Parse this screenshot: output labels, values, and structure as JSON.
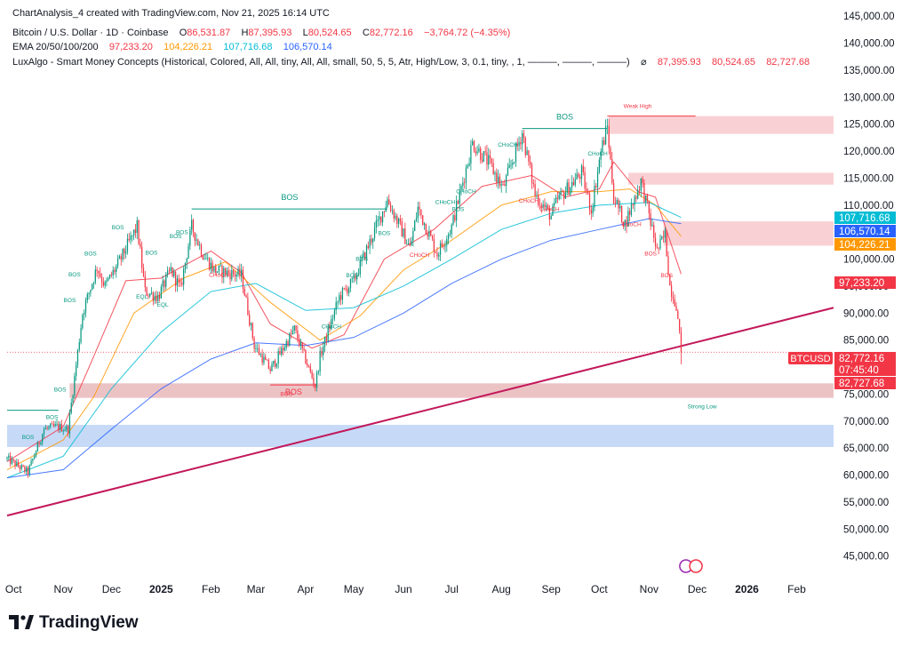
{
  "header": {
    "created": "ChartAnalysis_4 created with TradingView.com, Nov 21, 2025 16:14 UTC",
    "symbol": "Bitcoin / U.S. Dollar · 1D · Coinbase",
    "ohlc": {
      "o_label": "O",
      "o": "86,531.87",
      "h_label": "H",
      "h": "87,395.93",
      "l_label": "L",
      "l": "80,524.65",
      "c_label": "C",
      "c": "82,772.16",
      "change": "−3,764.72 (−4.35%)"
    },
    "ema_label": "EMA 20/50/100/200",
    "ema_values": [
      "97,233.20",
      "104,226.21",
      "107,716.68",
      "106,570.14"
    ],
    "luxalgo": "LuxAlgo - Smart Money Concepts (Historical, Colored, All, All, tiny, All, All, small, 50, 5, 5, Atr, High/Low, 3, 0.1, tiny, , 1, ———, ———, ———)",
    "lux_symbol": "⌀",
    "lux_values": [
      "87,395.93",
      "80,524.65",
      "82,727.68"
    ]
  },
  "footer": {
    "brand": "TradingView"
  },
  "colors": {
    "up": "#089981",
    "down": "#f23645",
    "ema20": "#f23645",
    "ema50": "#ff9800",
    "ema100": "#00bcd4",
    "ema200": "#2962ff",
    "trendline": "#c2185b",
    "structure": "#089981",
    "bearish_structure": "#f23645",
    "supply_zone": "#f8c9cc",
    "demand_zone": "#bcd3f7"
  },
  "chart_data": {
    "type": "candlestick",
    "title": "Bitcoin / U.S. Dollar · 1D · Coinbase",
    "y_axis": {
      "ylim": [
        41000,
        148000
      ],
      "ticks": [
        "145,000.00",
        "140,000.00",
        "135,000.00",
        "130,000.00",
        "125,000.00",
        "120,000.00",
        "115,000.00",
        "110,000.00",
        "105,000.00",
        "100,000.00",
        "95,000.00",
        "90,000.00",
        "85,000.00",
        "80,000.00",
        "75,000.00",
        "70,000.00",
        "65,000.00",
        "60,000.00",
        "55,000.00",
        "50,000.00",
        "45,000.00"
      ],
      "tick_values": [
        145000,
        140000,
        135000,
        130000,
        125000,
        120000,
        115000,
        110000,
        105000,
        100000,
        95000,
        90000,
        85000,
        80000,
        75000,
        70000,
        65000,
        60000,
        55000,
        50000,
        45000
      ]
    },
    "x_axis": {
      "ticks": [
        {
          "label": "Oct",
          "date": "2024-10-01",
          "bold": false
        },
        {
          "label": "Nov",
          "date": "2024-11-01",
          "bold": false
        },
        {
          "label": "Dec",
          "date": "2024-12-01",
          "bold": false
        },
        {
          "label": "2025",
          "date": "2025-01-01",
          "bold": true
        },
        {
          "label": "Feb",
          "date": "2025-02-01",
          "bold": false
        },
        {
          "label": "Mar",
          "date": "2025-03-01",
          "bold": false
        },
        {
          "label": "Apr",
          "date": "2025-04-01",
          "bold": false
        },
        {
          "label": "May",
          "date": "2025-05-01",
          "bold": false
        },
        {
          "label": "Jun",
          "date": "2025-06-01",
          "bold": false
        },
        {
          "label": "Jul",
          "date": "2025-07-01",
          "bold": false
        },
        {
          "label": "Aug",
          "date": "2025-08-01",
          "bold": false
        },
        {
          "label": "Sep",
          "date": "2025-09-01",
          "bold": false
        },
        {
          "label": "Oct",
          "date": "2025-10-01",
          "bold": false
        },
        {
          "label": "Nov",
          "date": "2025-11-01",
          "bold": false
        },
        {
          "label": "Dec",
          "date": "2025-12-01",
          "bold": false
        },
        {
          "label": "2026",
          "date": "2026-01-01",
          "bold": true
        },
        {
          "label": "Feb",
          "date": "2026-02-01",
          "bold": false
        }
      ],
      "range": [
        "2024-09-27",
        "2026-02-24"
      ]
    },
    "price_keypoints": [
      [
        "2024-09-27",
        63000
      ],
      [
        "2024-10-10",
        60500
      ],
      [
        "2024-10-20",
        68500
      ],
      [
        "2024-10-28",
        69000
      ],
      [
        "2024-11-04",
        68500
      ],
      [
        "2024-11-13",
        90000
      ],
      [
        "2024-11-22",
        98500
      ],
      [
        "2024-11-27",
        95000
      ],
      [
        "2024-12-05",
        99000
      ],
      [
        "2024-12-17",
        106000
      ],
      [
        "2024-12-22",
        94000
      ],
      [
        "2024-12-30",
        93000
      ],
      [
        "2025-01-07",
        98000
      ],
      [
        "2025-01-13",
        94500
      ],
      [
        "2025-01-20",
        106000
      ],
      [
        "2025-01-27",
        101000
      ],
      [
        "2025-02-03",
        98000
      ],
      [
        "2025-02-20",
        97000
      ],
      [
        "2025-02-28",
        84000
      ],
      [
        "2025-03-10",
        79500
      ],
      [
        "2025-03-25",
        87000
      ],
      [
        "2025-04-07",
        76500
      ],
      [
        "2025-04-10",
        82000
      ],
      [
        "2025-04-22",
        93000
      ],
      [
        "2025-05-01",
        96000
      ],
      [
        "2025-05-22",
        111000
      ],
      [
        "2025-06-05",
        102000
      ],
      [
        "2025-06-10",
        109500
      ],
      [
        "2025-06-22",
        101000
      ],
      [
        "2025-07-01",
        106000
      ],
      [
        "2025-07-14",
        121500
      ],
      [
        "2025-07-25",
        117500
      ],
      [
        "2025-08-02",
        113000
      ],
      [
        "2025-08-14",
        123500
      ],
      [
        "2025-08-22",
        112000
      ],
      [
        "2025-09-01",
        108000
      ],
      [
        "2025-09-05",
        111000
      ],
      [
        "2025-09-20",
        116000
      ],
      [
        "2025-09-26",
        109000
      ],
      [
        "2025-10-02",
        120000
      ],
      [
        "2025-10-06",
        124500
      ],
      [
        "2025-10-10",
        111500
      ],
      [
        "2025-10-17",
        106500
      ],
      [
        "2025-10-27",
        114500
      ],
      [
        "2025-10-31",
        109500
      ],
      [
        "2025-11-06",
        101500
      ],
      [
        "2025-11-11",
        104500
      ],
      [
        "2025-11-14",
        95000
      ],
      [
        "2025-11-18",
        91500
      ],
      [
        "2025-11-21",
        82772
      ]
    ],
    "last_candle": {
      "date": "2025-11-21",
      "open": 86531.87,
      "high": 87395.93,
      "low": 80524.65,
      "close": 82772.16
    },
    "series": [
      {
        "name": "EMA 20",
        "value": 97233.2,
        "color": "#f23645",
        "points": [
          [
            "2024-09-27",
            62500
          ],
          [
            "2024-11-01",
            69000
          ],
          [
            "2024-11-20",
            82000
          ],
          [
            "2024-12-10",
            96000
          ],
          [
            "2025-01-01",
            96500
          ],
          [
            "2025-02-01",
            101500
          ],
          [
            "2025-02-20",
            97500
          ],
          [
            "2025-03-10",
            88000
          ],
          [
            "2025-04-05",
            83500
          ],
          [
            "2025-04-25",
            86000
          ],
          [
            "2025-05-20",
            100000
          ],
          [
            "2025-06-20",
            105500
          ],
          [
            "2025-07-20",
            113500
          ],
          [
            "2025-08-20",
            115500
          ],
          [
            "2025-09-10",
            111500
          ],
          [
            "2025-10-01",
            113000
          ],
          [
            "2025-10-10",
            118000
          ],
          [
            "2025-10-25",
            112500
          ],
          [
            "2025-11-05",
            111500
          ],
          [
            "2025-11-21",
            97233
          ]
        ]
      },
      {
        "name": "EMA 50",
        "value": 104226.21,
        "color": "#ff9800",
        "points": [
          [
            "2024-09-27",
            61000
          ],
          [
            "2024-11-01",
            66500
          ],
          [
            "2024-11-20",
            74500
          ],
          [
            "2024-12-15",
            90000
          ],
          [
            "2025-01-15",
            96500
          ],
          [
            "2025-02-10",
            99500
          ],
          [
            "2025-03-10",
            92000
          ],
          [
            "2025-04-10",
            85000
          ],
          [
            "2025-05-05",
            89500
          ],
          [
            "2025-06-01",
            98000
          ],
          [
            "2025-07-01",
            103500
          ],
          [
            "2025-08-01",
            110000
          ],
          [
            "2025-09-01",
            112500
          ],
          [
            "2025-10-01",
            112500
          ],
          [
            "2025-10-20",
            113000
          ],
          [
            "2025-11-05",
            110000
          ],
          [
            "2025-11-21",
            104226
          ]
        ]
      },
      {
        "name": "EMA 100",
        "value": 107716.68,
        "color": "#00bcd4",
        "points": [
          [
            "2024-09-27",
            59500
          ],
          [
            "2024-11-01",
            63500
          ],
          [
            "2024-12-01",
            76000
          ],
          [
            "2025-01-01",
            86500
          ],
          [
            "2025-02-01",
            94000
          ],
          [
            "2025-03-01",
            95500
          ],
          [
            "2025-04-01",
            90500
          ],
          [
            "2025-05-01",
            91000
          ],
          [
            "2025-06-01",
            95000
          ],
          [
            "2025-07-01",
            100000
          ],
          [
            "2025-08-01",
            105500
          ],
          [
            "2025-09-01",
            108500
          ],
          [
            "2025-10-01",
            110000
          ],
          [
            "2025-11-01",
            110500
          ],
          [
            "2025-11-21",
            107717
          ]
        ]
      },
      {
        "name": "EMA 200",
        "value": 106570.14,
        "color": "#2962ff",
        "points": [
          [
            "2024-09-27",
            59500
          ],
          [
            "2024-11-01",
            61000
          ],
          [
            "2024-12-01",
            68500
          ],
          [
            "2025-01-01",
            76000
          ],
          [
            "2025-02-01",
            81500
          ],
          [
            "2025-03-01",
            84500
          ],
          [
            "2025-04-01",
            84000
          ],
          [
            "2025-05-01",
            85500
          ],
          [
            "2025-06-01",
            90000
          ],
          [
            "2025-07-01",
            95500
          ],
          [
            "2025-08-01",
            100000
          ],
          [
            "2025-09-01",
            103500
          ],
          [
            "2025-10-01",
            105500
          ],
          [
            "2025-11-01",
            107500
          ],
          [
            "2025-11-21",
            106570
          ]
        ]
      }
    ],
    "price_labels": [
      {
        "text": "107,716.68",
        "value": 107716.68,
        "color": "#00bcd4"
      },
      {
        "text": "106,570.14",
        "value": 106570.14,
        "color": "#2962ff"
      },
      {
        "text": "104,226.21",
        "value": 104226.21,
        "color": "#ff9800"
      },
      {
        "text": "97,233.20",
        "value": 97233.2,
        "color": "#f23645"
      },
      {
        "text": "BTCUSD",
        "value": 82772.16,
        "color": "#f23645",
        "tag": true
      },
      {
        "text": "82,772.16",
        "value": 82772.16,
        "color": "#f23645"
      },
      {
        "text": "07:45:40",
        "value": 82772.16,
        "color": "#f23645",
        "sub": true
      },
      {
        "text": "82,727.68",
        "value": 82727.68,
        "color": "#f23645"
      }
    ],
    "trendline": {
      "from": [
        "2024-09-27",
        52500
      ],
      "to": [
        "2026-02-24",
        91000
      ],
      "color": "#c2185b"
    },
    "zones": [
      {
        "from": "2025-10-07",
        "to": "2026-02-24",
        "top": 126500,
        "bottom": 123200,
        "color": "#f8c9cc"
      },
      {
        "from": "2025-10-19",
        "to": "2026-02-24",
        "top": 116000,
        "bottom": 113800,
        "color": "#f8c9cc"
      },
      {
        "from": "2025-11-10",
        "to": "2026-02-24",
        "top": 107000,
        "bottom": 102500,
        "color": "#f8c9cc"
      },
      {
        "from": "2024-11-05",
        "to": "2026-02-24",
        "top": 77000,
        "bottom": 74300,
        "color": "#e9b8bb"
      },
      {
        "from": "2024-09-27",
        "to": "2026-02-24",
        "top": 69300,
        "bottom": 65200,
        "color": "#bcd3f7"
      }
    ],
    "structure_lines": [
      {
        "label": "BOS",
        "from": "2025-01-20",
        "to": "2025-05-22",
        "value": 109300,
        "color": "#089981"
      },
      {
        "label": "BOS",
        "from": "2025-08-14",
        "to": "2025-10-06",
        "value": 124200,
        "color": "#089981"
      },
      {
        "label": "BOS",
        "from": "2025-03-10",
        "to": "2025-04-08",
        "value": 76700,
        "color": "#f23645"
      },
      {
        "label": "",
        "from": "2024-09-27",
        "to": "2024-10-29",
        "value": 72000,
        "color": "#089981"
      }
    ],
    "weak_high": {
      "label": "Weak High",
      "date": "2025-10-15",
      "value": 126500,
      "to": "2025-11-30"
    },
    "strong_low": {
      "label": "Strong Low",
      "date": "2025-11-25",
      "value": 73000
    },
    "annotations": [
      {
        "text": "BOS",
        "date": "2024-12-05",
        "value": 105500,
        "color": "#089981"
      },
      {
        "text": "BOS",
        "date": "2024-11-18",
        "value": 100700,
        "color": "#089981"
      },
      {
        "text": "BOS",
        "date": "2024-11-08",
        "value": 96800,
        "color": "#089981"
      },
      {
        "text": "BOS",
        "date": "2024-11-05",
        "value": 92000,
        "color": "#089981"
      },
      {
        "text": "BOS",
        "date": "2024-10-30",
        "value": 75500,
        "color": "#089981"
      },
      {
        "text": "BOS",
        "date": "2024-10-25",
        "value": 70400,
        "color": "#089981"
      },
      {
        "text": "BOS",
        "date": "2024-10-10",
        "value": 66700,
        "color": "#089981"
      },
      {
        "text": "BOS",
        "date": "2024-12-26",
        "value": 100800,
        "color": "#089981"
      },
      {
        "text": "BOS",
        "date": "2025-01-10",
        "value": 103900,
        "color": "#089981"
      },
      {
        "text": "BOS",
        "date": "2025-01-14",
        "value": 104600,
        "color": "#089981"
      },
      {
        "text": "EQL",
        "date": "2024-12-20",
        "value": 92700,
        "color": "#089981"
      },
      {
        "text": "EQL",
        "date": "2025-01-02",
        "value": 91200,
        "color": "#089981"
      },
      {
        "text": "CHoCH",
        "date": "2025-02-06",
        "value": 96700,
        "color": "#f23645"
      },
      {
        "text": "BOS",
        "date": "2025-03-20",
        "value": 74700,
        "color": "#f23645"
      },
      {
        "text": "CHoCH",
        "date": "2025-04-17",
        "value": 87200,
        "color": "#089981"
      },
      {
        "text": "BOS",
        "date": "2025-04-30",
        "value": 96600,
        "color": "#089981"
      },
      {
        "text": "BOS",
        "date": "2025-05-06",
        "value": 99700,
        "color": "#089981"
      },
      {
        "text": "BOS",
        "date": "2025-05-20",
        "value": 104500,
        "color": "#089981"
      },
      {
        "text": "CHoCH",
        "date": "2025-06-11",
        "value": 100400,
        "color": "#f23645"
      },
      {
        "text": "CHoCH",
        "date": "2025-06-27",
        "value": 110200,
        "color": "#089981"
      },
      {
        "text": "BOS",
        "date": "2025-07-05",
        "value": 108900,
        "color": "#089981"
      },
      {
        "text": "CHoCH",
        "date": "2025-07-10",
        "value": 112200,
        "color": "#089981"
      },
      {
        "text": "CHoCH",
        "date": "2025-08-05",
        "value": 120800,
        "color": "#089981"
      },
      {
        "text": "CHoCH",
        "date": "2025-08-18",
        "value": 110500,
        "color": "#f23645"
      },
      {
        "text": "CHoCH",
        "date": "2025-08-31",
        "value": 108900,
        "color": "#f23645"
      },
      {
        "text": "CHoCH",
        "date": "2025-09-30",
        "value": 119200,
        "color": "#089981"
      },
      {
        "text": "CHoCH",
        "date": "2025-10-21",
        "value": 106100,
        "color": "#f23645"
      },
      {
        "text": "BOS",
        "date": "2025-11-02",
        "value": 100700,
        "color": "#f23645"
      },
      {
        "text": "BOS",
        "date": "2025-11-12",
        "value": 96600,
        "color": "#f23645"
      }
    ]
  }
}
